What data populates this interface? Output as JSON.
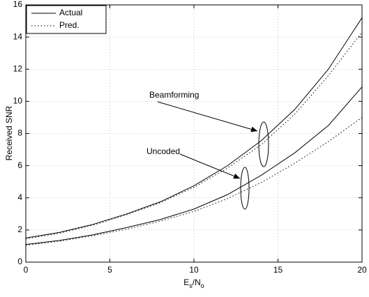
{
  "chart_data": {
    "type": "line",
    "xlabel": [
      "E",
      "s",
      "/N",
      "o"
    ],
    "ylabel": "Received SNR",
    "x": [
      0,
      2,
      4,
      6,
      8,
      10,
      12,
      14,
      16,
      18,
      20
    ],
    "series": [
      {
        "dash": "solid",
        "color": "#000000",
        "values": [
          1.5,
          1.85,
          2.35,
          3.0,
          3.75,
          4.75,
          6.0,
          7.55,
          9.5,
          12.0,
          15.2
        ]
      },
      {
        "dash": "dotted",
        "color": "#000000",
        "values": [
          1.45,
          1.8,
          2.3,
          2.95,
          3.7,
          4.65,
          5.85,
          7.3,
          9.2,
          11.6,
          14.3
        ]
      },
      {
        "dash": "solid",
        "color": "#000000",
        "values": [
          1.1,
          1.35,
          1.7,
          2.15,
          2.65,
          3.3,
          4.2,
          5.4,
          6.8,
          8.5,
          10.9
        ]
      },
      {
        "dash": "dotted",
        "color": "#000000",
        "values": [
          1.05,
          1.3,
          1.65,
          2.05,
          2.55,
          3.15,
          3.95,
          4.95,
          6.15,
          7.5,
          9.0
        ]
      }
    ],
    "legend": [
      {
        "label": "Actual",
        "dash": "solid"
      },
      {
        "label": "Pred.",
        "dash": "dotted"
      }
    ],
    "annotations": [
      {
        "text": "Beamforming"
      },
      {
        "text": "Uncoded"
      }
    ],
    "xlim": [
      0,
      20
    ],
    "xticks": [
      0,
      5,
      10,
      15,
      20
    ],
    "ylim": [
      0,
      16
    ],
    "yticks": [
      0,
      2,
      4,
      6,
      8,
      10,
      12,
      14,
      16
    ],
    "grid": true
  }
}
